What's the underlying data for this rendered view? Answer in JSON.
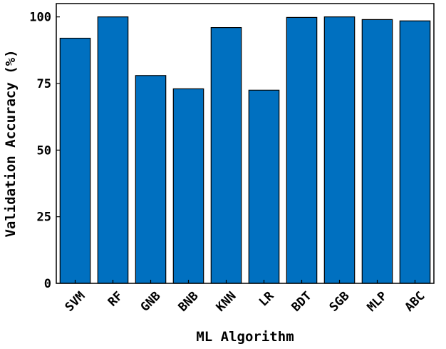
{
  "chart_data": {
    "type": "bar",
    "categories": [
      "SVM",
      "RF",
      "GNB",
      "BNB",
      "KNN",
      "LR",
      "BDT",
      "SGB",
      "MLP",
      "ABC"
    ],
    "values": [
      92,
      100,
      78,
      73,
      96,
      72.5,
      99.8,
      100,
      99,
      98.5
    ],
    "title": "",
    "xlabel": "ML Algorithm",
    "ylabel": "Validation Accuracy (%)",
    "ylim": [
      0,
      105
    ],
    "yticks": [
      0,
      25,
      50,
      75,
      100
    ],
    "grid": false,
    "bar_color": "#0070C0",
    "edge_color": "#000000"
  }
}
